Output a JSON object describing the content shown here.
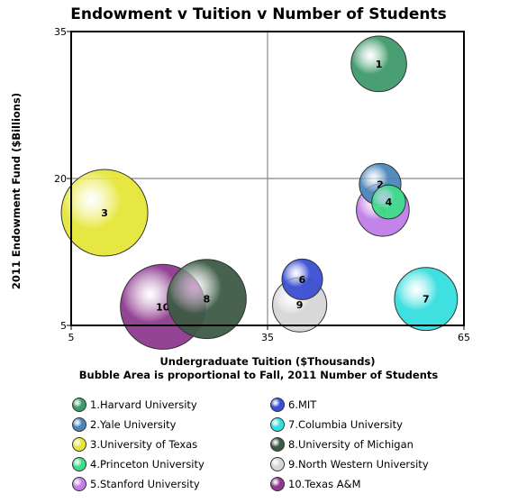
{
  "chart_data": {
    "type": "scatter",
    "title": "Endowment v Tuition v Number of Students",
    "xlabel": "Undergraduate Tuition ($Thousands)",
    "subtitle": "Bubble Area is proportional to Fall, 2011 Number of Students",
    "ylabel": "2011 Endowment Fund ($Billions)",
    "xlim": [
      5,
      65
    ],
    "ylim": [
      5,
      35
    ],
    "xticks": [
      "5",
      "35",
      "65"
    ],
    "yticks": [
      "35",
      "20",
      "5"
    ],
    "grid": true,
    "legend_position": "bottom",
    "series": [
      {
        "label": "1",
        "name": "1.Harvard University",
        "x": 52,
        "y": 31.7,
        "students": 21000,
        "color": "#3f9a6b"
      },
      {
        "label": "2",
        "name": "2.Yale University",
        "x": 52.2,
        "y": 19.4,
        "students": 11800,
        "color": "#4b86b8"
      },
      {
        "label": "3",
        "name": "3.University of Texas",
        "x": 10.1,
        "y": 16.5,
        "students": 51000,
        "color": "#e6e63a"
      },
      {
        "label": "4",
        "name": "4.Princeton University",
        "x": 53.5,
        "y": 17.6,
        "students": 7800,
        "color": "#3fdc8a"
      },
      {
        "label": "5",
        "name": "5.Stanford University",
        "x": 52.6,
        "y": 16.8,
        "students": 19000,
        "color": "#c07ee8"
      },
      {
        "label": "6",
        "name": "6.MIT",
        "x": 40.3,
        "y": 9.7,
        "students": 11200,
        "color": "#3a4fd4"
      },
      {
        "label": "7",
        "name": "7.Columbia University",
        "x": 59.2,
        "y": 7.7,
        "students": 27000,
        "color": "#35dede"
      },
      {
        "label": "8",
        "name": "8.University of Michigan",
        "x": 25.7,
        "y": 7.7,
        "students": 42700,
        "color": "#3d5a44"
      },
      {
        "label": "9",
        "name": "9.North Western University",
        "x": 39.9,
        "y": 7.1,
        "students": 20000,
        "color": "#d6d6d6"
      },
      {
        "label": "10",
        "name": "10.Texas A&M",
        "x": 19.0,
        "y": 6.9,
        "students": 49000,
        "color": "#8e3a8e"
      }
    ]
  }
}
